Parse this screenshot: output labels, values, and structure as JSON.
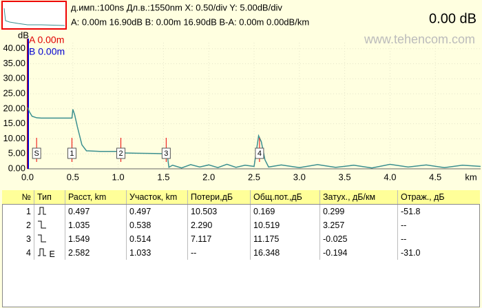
{
  "header": {
    "line1": "д.имп.:100ns Дл.в.:1550nm  X: 0.50/div Y: 5.00dB/div",
    "line2": "A: 0.00m 16.90dB B: 0.00m 16.90dB B-A: 0.00m 0.00dB/km",
    "reading": "0.00 dB",
    "watermark": "www.tehencom.com"
  },
  "chart_data": {
    "type": "line",
    "y_label": "dB",
    "x_label": "km",
    "grid": true,
    "xlim": [
      0,
      5
    ],
    "ylim": [
      0,
      42
    ],
    "xticks": [
      {
        "value": 0,
        "label": "0.0"
      },
      0.5,
      {
        "value": 1,
        "label": "1.0"
      },
      1.5,
      {
        "value": 2,
        "label": "2.0"
      },
      2.5,
      {
        "value": 3,
        "label": "3.0"
      },
      3.5,
      {
        "value": 4,
        "label": "4.0"
      },
      4.5
    ],
    "yticks": [
      {
        "value": 0,
        "label": "0.00"
      },
      {
        "value": 5,
        "label": "5.00"
      },
      {
        "value": 10,
        "label": "10.00"
      },
      {
        "value": 15,
        "label": "15.00"
      },
      {
        "value": 20,
        "label": "20.00"
      },
      {
        "value": 25,
        "label": "25.00"
      },
      {
        "value": 30,
        "label": "30.00"
      },
      {
        "value": 35,
        "label": "35.00"
      },
      {
        "value": 40,
        "label": "40.00"
      }
    ],
    "cursors": [
      {
        "name": "A 0.00m",
        "color": "#e00000"
      },
      {
        "name": "B 0.00m",
        "color": "#0000d0"
      }
    ],
    "events": [
      {
        "label": "S",
        "x": 0.1
      },
      {
        "label": "1",
        "x": 0.49
      },
      {
        "label": "2",
        "x": 1.03
      },
      {
        "label": "3",
        "x": 1.53
      },
      {
        "label": "4",
        "x": 2.56
      }
    ],
    "series": [
      {
        "color": "#3a8f8f",
        "x": [
          0,
          0.02,
          0.05,
          0.1,
          0.15,
          0.2,
          0.3,
          0.4,
          0.49,
          0.5,
          0.52,
          0.55,
          0.6,
          0.65,
          0.8,
          1.0,
          1.03,
          1.2,
          1.4,
          1.54,
          1.56,
          1.6,
          1.7,
          1.8,
          1.9,
          2.0,
          2.1,
          2.2,
          2.3,
          2.4,
          2.5,
          2.55,
          2.58,
          2.62,
          2.66,
          2.8,
          3.0,
          3.2,
          3.4,
          3.6,
          3.8,
          4.0,
          4.2,
          4.4,
          4.6,
          4.8,
          5.0
        ],
        "values": [
          20.5,
          19,
          17.5,
          17,
          16.9,
          16.9,
          16.9,
          16.9,
          16.9,
          19.8,
          18,
          14,
          8,
          6,
          5.8,
          5.8,
          5.3,
          5.2,
          5.1,
          5.0,
          0.5,
          1.2,
          0.3,
          1.4,
          0.6,
          1.3,
          0.4,
          1.5,
          0.5,
          1.2,
          0.8,
          11,
          9,
          3,
          0.6,
          1.3,
          0.4,
          1.4,
          0.5,
          1.2,
          0.3,
          1.5,
          0.6,
          1.3,
          0.4,
          1.2,
          0.8
        ]
      }
    ]
  },
  "table": {
    "headers": [
      "№",
      "Тип",
      "Расст, km",
      "Участок, km",
      "Потери,дБ",
      "Общ.пот.,дБ",
      "Затух., дБ/км",
      "Отраж., дБ"
    ],
    "rows": [
      {
        "no": "1",
        "distance": "0.497",
        "section": "0.497",
        "loss": "10.503",
        "total": "0.169",
        "attenuation": "0.299",
        "reflection": "-51.8"
      },
      {
        "no": "2",
        "distance": "1.035",
        "section": "0.538",
        "loss": "2.290",
        "total": "10.519",
        "attenuation": "3.257",
        "reflection": "--"
      },
      {
        "no": "3",
        "distance": "1.549",
        "section": "0.514",
        "loss": "7.117",
        "total": "11.175",
        "attenuation": "-0.025",
        "reflection": "--"
      },
      {
        "no": "4",
        "type": "E",
        "distance": "2.582",
        "section": "1.033",
        "loss": "--",
        "total": "16.348",
        "attenuation": "-0.194",
        "reflection": "-31.0"
      }
    ]
  }
}
